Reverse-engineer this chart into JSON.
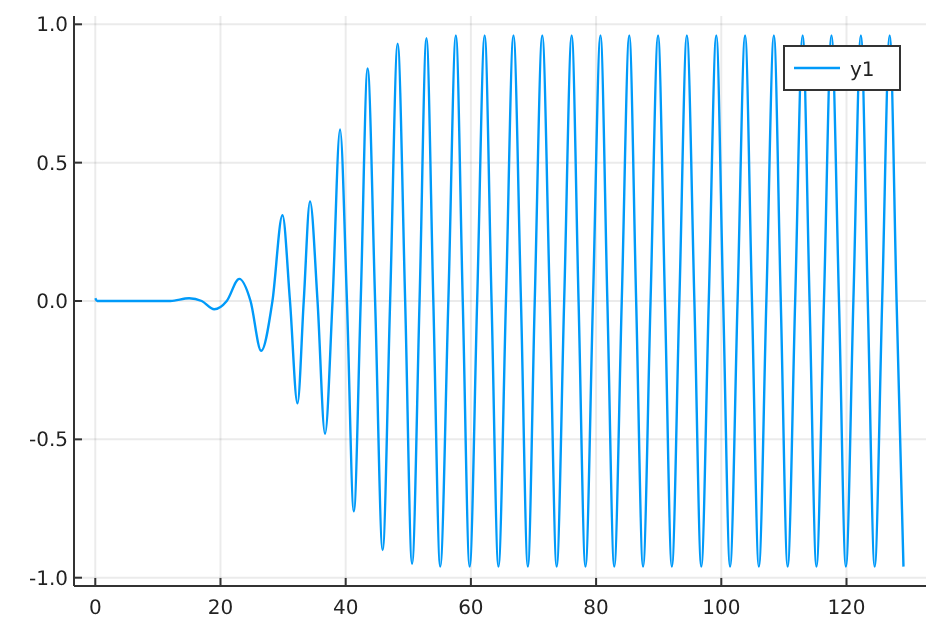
{
  "chart_data": {
    "type": "line",
    "xlim": [
      -3.4,
      132.7
    ],
    "ylim": [
      -1.03,
      1.03
    ],
    "xticks": [
      0,
      20,
      40,
      60,
      80,
      100,
      120
    ],
    "yticks": [
      {
        "value": -1,
        "label": "-1.0"
      },
      {
        "value": -0.5,
        "label": "-0.5"
      },
      {
        "value": 0,
        "label": "0.0"
      },
      {
        "value": 0.5,
        "label": "0.5"
      },
      {
        "value": 1,
        "label": "1.0"
      }
    ],
    "grid": true,
    "legend": "top right",
    "x": [
      0,
      0.3,
      10,
      12,
      15,
      17,
      19,
      21,
      23,
      24.8,
      26.5,
      28.3,
      29.9,
      31.1,
      32.3,
      33.3,
      34.3,
      35.5,
      36.7,
      37.9,
      39.1,
      40.2,
      41.3,
      42.4,
      43.5,
      44.7,
      45.9,
      47.1,
      48.3,
      49.5,
      50.6,
      51.8,
      52.9,
      54,
      55.1,
      56.4,
      57.6,
      58.7,
      59.8,
      61,
      62.2,
      63.3,
      64.4,
      65.6,
      66.8,
      68,
      69.1,
      70.2,
      71.4,
      72.6,
      73.7,
      74.9,
      76.1,
      77.2,
      78.3,
      79.5,
      80.7,
      81.8,
      82.9,
      84.1,
      85.3,
      86.4,
      87.5,
      88.7,
      89.9,
      91,
      92.1,
      93.3,
      94.5,
      95.7,
      96.8,
      98,
      99.2,
      100.3,
      101.4,
      102.6,
      103.8,
      104.9,
      106,
      107.2,
      108.4,
      109.5,
      110.6,
      111.8,
      113,
      114.1,
      115.2,
      116.4,
      117.6,
      118.8,
      119.9,
      121.1,
      122.3,
      123.4,
      124.5,
      125.7,
      126.9,
      128,
      129.1
    ],
    "series": [
      {
        "name": "y1",
        "color": "#009af9",
        "values": [
          0.01,
          0,
          0,
          0,
          0.01,
          0,
          -0.03,
          0,
          0.08,
          0,
          -0.18,
          0,
          0.31,
          0,
          -0.37,
          0,
          0.36,
          0,
          -0.48,
          0,
          0.62,
          0,
          -0.76,
          0,
          0.84,
          0,
          -0.9,
          0,
          0.93,
          0,
          -0.95,
          0,
          0.95,
          0,
          -0.96,
          0,
          0.96,
          0,
          -0.96,
          0,
          0.96,
          0,
          -0.96,
          0,
          0.96,
          0,
          -0.96,
          0,
          0.96,
          0,
          -0.96,
          0,
          0.96,
          0,
          -0.96,
          0,
          0.96,
          0,
          -0.96,
          0,
          0.96,
          0,
          -0.96,
          0,
          0.96,
          0,
          -0.96,
          0,
          0.96,
          0,
          -0.96,
          0,
          0.96,
          0,
          -0.96,
          0,
          0.96,
          0,
          -0.96,
          0,
          0.96,
          0,
          -0.96,
          0,
          0.96,
          0,
          -0.96,
          0,
          0.96,
          0,
          -0.96,
          0,
          0.96,
          0,
          -0.96,
          0,
          0.96,
          0,
          -0.96
        ]
      }
    ]
  }
}
